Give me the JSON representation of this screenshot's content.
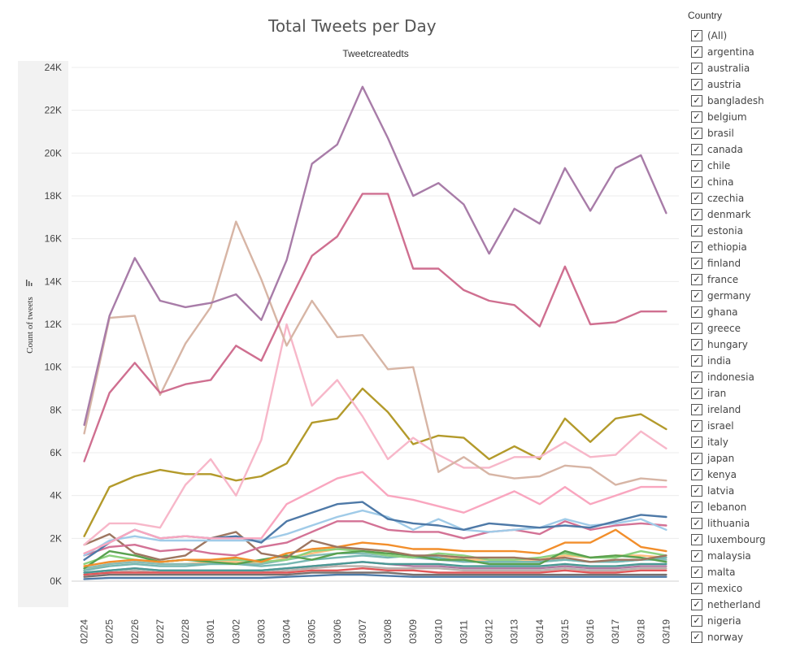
{
  "chart_data": {
    "type": "line",
    "title": "Total Tweets per Day",
    "subtitle": "Tweetcreatedts",
    "ylabel": "Count of tweets",
    "xlabel": "",
    "ylim": [
      0,
      24000
    ],
    "yticks": [
      0,
      2000,
      4000,
      6000,
      8000,
      10000,
      12000,
      14000,
      16000,
      18000,
      20000,
      22000,
      24000
    ],
    "ytick_labels": [
      "0K",
      "2K",
      "4K",
      "6K",
      "8K",
      "10K",
      "12K",
      "14K",
      "16K",
      "18K",
      "20K",
      "22K",
      "24K"
    ],
    "grid": "horizontal",
    "legend": "right",
    "categories": [
      "02/24",
      "02/25",
      "02/26",
      "02/27",
      "02/28",
      "03/01",
      "03/02",
      "03/03",
      "03/04",
      "03/05",
      "03/06",
      "03/07",
      "03/08",
      "03/09",
      "03/10",
      "03/11",
      "03/12",
      "03/13",
      "03/14",
      "03/15",
      "03/16",
      "03/17",
      "03/18",
      "03/19"
    ],
    "series": [
      {
        "color": "#a87ca8",
        "values": [
          7300,
          12400,
          15100,
          13100,
          12800,
          13000,
          13400,
          12200,
          15000,
          19500,
          20400,
          23100,
          20700,
          18000,
          18600,
          17600,
          15300,
          17400,
          16700,
          19300,
          17300,
          19300,
          19900,
          17200
        ]
      },
      {
        "color": "#cf6f90",
        "values": [
          5600,
          8800,
          10200,
          8800,
          9200,
          9400,
          11000,
          10300,
          12800,
          15200,
          16100,
          18100,
          18100,
          14600,
          14600,
          13600,
          13100,
          12900,
          11900,
          14700,
          12000,
          12100,
          12600,
          12600
        ]
      },
      {
        "color": "#d7b5a5",
        "values": [
          6900,
          12300,
          12400,
          8700,
          11100,
          12800,
          16800,
          14100,
          11000,
          13100,
          11400,
          11500,
          9900,
          10000,
          5100,
          5800,
          5000,
          4800,
          4900,
          5400,
          5300,
          4500,
          4800,
          4700
        ]
      },
      {
        "color": "#f7b7c9",
        "values": [
          1700,
          2700,
          2700,
          2500,
          4500,
          5700,
          4000,
          6600,
          12000,
          8200,
          9400,
          7700,
          5700,
          6700,
          5900,
          5300,
          5300,
          5800,
          5800,
          6500,
          5800,
          5900,
          7000,
          6200
        ]
      },
      {
        "color": "#b39a2b",
        "values": [
          2100,
          4400,
          4900,
          5200,
          5000,
          5000,
          4700,
          4900,
          5500,
          7400,
          7600,
          9000,
          7900,
          6400,
          6800,
          6700,
          5700,
          6300,
          5700,
          7600,
          6500,
          7600,
          7800,
          7100
        ]
      },
      {
        "color": "#f9a6bf",
        "values": [
          1300,
          1800,
          2400,
          2000,
          2100,
          2000,
          2000,
          2000,
          3600,
          4200,
          4800,
          5100,
          4000,
          3800,
          3500,
          3200,
          3700,
          4200,
          3600,
          4400,
          3600,
          4000,
          4400,
          4400
        ]
      },
      {
        "color": "#4e79a7",
        "values": [
          1000,
          1800,
          2400,
          2000,
          2100,
          2000,
          2100,
          1800,
          2800,
          3200,
          3600,
          3700,
          2900,
          2700,
          2600,
          2400,
          2700,
          2600,
          2500,
          2600,
          2500,
          2800,
          3100,
          3000
        ]
      },
      {
        "color": "#a0cbe8",
        "values": [
          1200,
          1900,
          2100,
          1900,
          1900,
          1900,
          1900,
          1900,
          2200,
          2600,
          3000,
          3300,
          3000,
          2400,
          2900,
          2400,
          2300,
          2400,
          2500,
          2900,
          2600,
          2700,
          2900,
          2400
        ]
      },
      {
        "color": "#d37295",
        "values": [
          1200,
          1600,
          1700,
          1400,
          1500,
          1300,
          1200,
          1600,
          1800,
          2300,
          2800,
          2800,
          2400,
          2300,
          2300,
          2000,
          2300,
          2400,
          2200,
          2800,
          2400,
          2600,
          2700,
          2600
        ]
      },
      {
        "color": "#9d7660",
        "values": [
          1700,
          2200,
          1300,
          1000,
          1200,
          2000,
          2300,
          1300,
          1100,
          1900,
          1600,
          1500,
          1400,
          1200,
          1200,
          1100,
          1100,
          1100,
          1000,
          1100,
          900,
          1000,
          1000,
          1200
        ]
      },
      {
        "color": "#f28e2b",
        "values": [
          700,
          900,
          1000,
          900,
          1000,
          1000,
          1100,
          900,
          1300,
          1500,
          1600,
          1800,
          1700,
          1500,
          1500,
          1400,
          1400,
          1400,
          1300,
          1800,
          1800,
          2400,
          1600,
          1400
        ]
      },
      {
        "color": "#59a14f",
        "values": [
          600,
          1400,
          1200,
          900,
          1000,
          900,
          800,
          1000,
          1200,
          1000,
          1300,
          1400,
          1300,
          1200,
          1000,
          1000,
          800,
          800,
          800,
          1400,
          1100,
          1200,
          1100,
          900
        ]
      },
      {
        "color": "#8cd17d",
        "values": [
          800,
          1200,
          1000,
          900,
          1000,
          1000,
          1000,
          900,
          1000,
          1400,
          1500,
          1400,
          1200,
          1100,
          1300,
          1200,
          1000,
          1000,
          1100,
          1300,
          1100,
          1100,
          1400,
          1200
        ]
      },
      {
        "color": "#76b7b2",
        "values": [
          500,
          700,
          800,
          700,
          700,
          800,
          800,
          700,
          800,
          1000,
          1100,
          1200,
          1100,
          1200,
          1100,
          900,
          900,
          900,
          900,
          1000,
          900,
          900,
          1000,
          1100
        ]
      },
      {
        "color": "#499894",
        "values": [
          400,
          500,
          600,
          500,
          500,
          500,
          500,
          500,
          600,
          700,
          800,
          900,
          800,
          800,
          800,
          700,
          700,
          700,
          700,
          800,
          700,
          700,
          800,
          800
        ]
      },
      {
        "color": "#e15759",
        "values": [
          300,
          400,
          400,
          400,
          400,
          400,
          400,
          400,
          400,
          500,
          500,
          600,
          500,
          500,
          400,
          400,
          400,
          400,
          400,
          500,
          400,
          400,
          500,
          500
        ]
      },
      {
        "color": "#86bcb6",
        "values": [
          600,
          800,
          900,
          800,
          800,
          800,
          800,
          800,
          1000,
          1200,
          1300,
          1300,
          1200,
          1100,
          1000,
          900,
          900,
          900,
          900,
          1000,
          900,
          900,
          1000,
          1000
        ]
      },
      {
        "color": "#ffbe7d",
        "values": [
          500,
          800,
          900,
          800,
          800,
          900,
          900,
          800,
          1100,
          1300,
          1500,
          1500,
          1400,
          1200,
          1100,
          1000,
          1000,
          1000,
          1000,
          1200,
          1100,
          1200,
          1200,
          1100
        ]
      },
      {
        "color": "#79706e",
        "values": [
          200,
          300,
          300,
          300,
          300,
          300,
          300,
          300,
          300,
          400,
          400,
          400,
          400,
          300,
          300,
          300,
          300,
          300,
          300,
          300,
          300,
          300,
          300,
          300
        ]
      },
      {
        "color": "#b07aa1",
        "values": [
          400,
          500,
          600,
          500,
          500,
          500,
          500,
          500,
          600,
          700,
          800,
          900,
          800,
          700,
          700,
          600,
          600,
          600,
          600,
          700,
          600,
          600,
          700,
          700
        ]
      },
      {
        "color": "#4e79a7",
        "values": [
          100,
          150,
          150,
          150,
          150,
          150,
          150,
          150,
          200,
          250,
          300,
          300,
          250,
          200,
          200,
          200,
          200,
          200,
          200,
          200,
          200,
          200,
          200,
          200
        ]
      },
      {
        "color": "#bab0ac",
        "values": [
          300,
          400,
          500,
          400,
          400,
          400,
          400,
          400,
          500,
          600,
          700,
          700,
          600,
          600,
          600,
          500,
          500,
          500,
          500,
          600,
          500,
          500,
          600,
          600
        ]
      }
    ]
  },
  "legend": {
    "title": "Country",
    "check_glyph": "✓",
    "items": [
      "(All)",
      "argentina",
      "australia",
      "austria",
      "bangladesh",
      "belgium",
      "brasil",
      "canada",
      "chile",
      "china",
      "czechia",
      "denmark",
      "estonia",
      "ethiopia",
      "finland",
      "france",
      "germany",
      "ghana",
      "greece",
      "hungary",
      "india",
      "indonesia",
      "iran",
      "ireland",
      "israel",
      "italy",
      "japan",
      "kenya",
      "latvia",
      "lebanon",
      "lithuania",
      "luxembourg",
      "malaysia",
      "malta",
      "mexico",
      "netherland",
      "nigeria",
      "norway"
    ]
  },
  "sort_icon": "sort-icon"
}
